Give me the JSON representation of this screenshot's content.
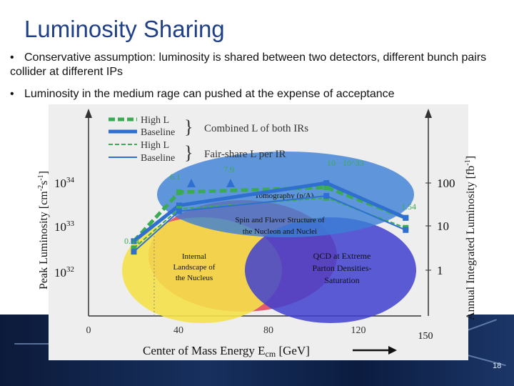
{
  "slide": {
    "title": "Luminosity Sharing",
    "bullets": [
      "Conservative assumption: luminosity is shared between two detectors, different bunch pairs collider at different IPs",
      "Luminosity in the medium rage can pushed at the expense of acceptance"
    ],
    "page_number": "18"
  },
  "chart": {
    "y_left_label": "Peak Luminosity [cm-2s-1]",
    "y_right_label": "Annual Integrated Luminosity [fb-1]",
    "x_label": "Center of Mass Energy Ecm [GeV]",
    "left_ticks": [
      "10^34",
      "10^33",
      "10^32"
    ],
    "right_ticks": [
      "100",
      "10",
      "1"
    ],
    "x_ticks": [
      "0",
      "40",
      "80",
      "120"
    ],
    "x_extra_tick": "150",
    "legend": [
      {
        "label": "High L",
        "style": "dashed-thick"
      },
      {
        "label": "Baseline",
        "style": "solid-thick"
      },
      {
        "label": "High L",
        "style": "dashed-thin"
      },
      {
        "label": "Baseline",
        "style": "solid-thin"
      }
    ],
    "legend_groups": [
      "Combined L of both IRs",
      "Fair-share L per IR"
    ],
    "value_labels": [
      "6.1",
      "7.9",
      "10 · 10^33",
      "1.54",
      "0.44"
    ],
    "regions": [
      {
        "label": "Tomography (p/A)",
        "color": "#3b7fd6"
      },
      {
        "label": "Spin and Flavor Structure of the Nucleon and Nuclei",
        "color": "#e0405a"
      },
      {
        "label": "Internal Landscape of the Nucleus",
        "color": "#f4e04a"
      },
      {
        "label": "QCD at Extreme Parton Densities- Saturation",
        "color": "#3f3fcf"
      }
    ]
  },
  "chart_data": {
    "type": "line",
    "x": [
      20,
      40,
      105,
      140
    ],
    "series": [
      {
        "name": "High L",
        "values": [
          0.44,
          6.1,
          7.9,
          1.54
        ]
      },
      {
        "name": "Baseline",
        "values": [
          0.44,
          3.0,
          10,
          1.54
        ]
      },
      {
        "name": "High L",
        "values": [
          0.3,
          2.5,
          4.5,
          0.9
        ]
      },
      {
        "name": "Baseline",
        "values": [
          0.25,
          2.2,
          5.0,
          0.8
        ]
      }
    ],
    "xlabel": "Center of Mass Energy Ecm [GeV]",
    "ylabel": "Peak Luminosity [cm-2s-1]",
    "xlim": [
      0,
      150
    ],
    "ylim": [
      0.1,
      20
    ],
    "y_unit": "10^33 cm-2s-1"
  }
}
